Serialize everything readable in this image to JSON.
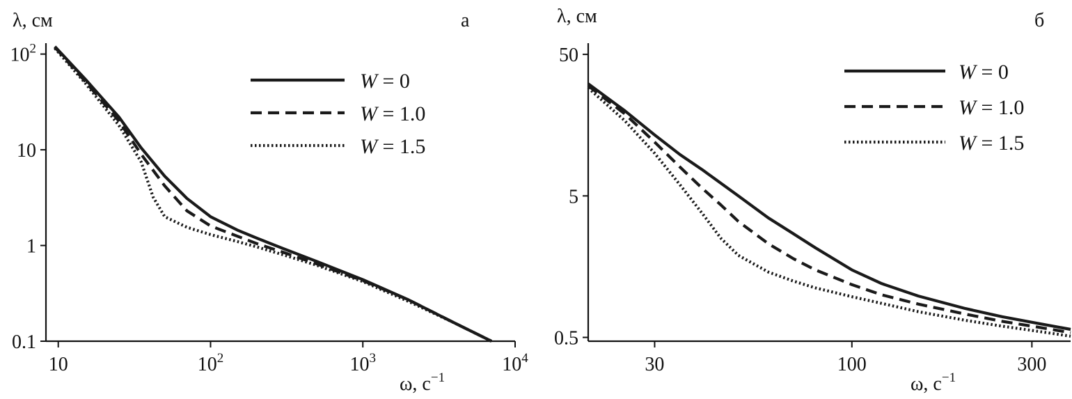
{
  "chart_data": [
    {
      "type": "line",
      "panel_label": "а",
      "ylabel": "λ, см",
      "xlabel": "ω, с",
      "xlabel_sup": "−1",
      "xscale": "log",
      "yscale": "log",
      "xlim": [
        8.3,
        10000
      ],
      "ylim": [
        0.1,
        130
      ],
      "xticks": [
        {
          "value": 10,
          "base": "10",
          "exp": ""
        },
        {
          "value": 100,
          "base": "10",
          "exp": "2"
        },
        {
          "value": 1000,
          "base": "10",
          "exp": "3"
        },
        {
          "value": 10000,
          "base": "10",
          "exp": "4"
        }
      ],
      "yticks": [
        {
          "value": 100,
          "base": "10",
          "exp": "2"
        },
        {
          "value": 10,
          "base": "10",
          "exp": ""
        },
        {
          "value": 1,
          "base": "1",
          "exp": ""
        },
        {
          "value": 0.1,
          "base": "0.1",
          "exp": ""
        }
      ],
      "legend_position": "top-right",
      "series": [
        {
          "name": "W",
          "value_label": "= 0",
          "style": "solid",
          "x": [
            9.5,
            15,
            25,
            35,
            50,
            70,
            100,
            150,
            200,
            300,
            500,
            1000,
            2000,
            4000,
            7000
          ],
          "y": [
            120,
            55,
            22,
            10.5,
            5.3,
            3.1,
            2.0,
            1.45,
            1.2,
            0.93,
            0.68,
            0.44,
            0.27,
            0.155,
            0.1
          ]
        },
        {
          "name": "W",
          "value_label": "= 1.0",
          "style": "dashed",
          "x": [
            9.5,
            15,
            25,
            35,
            50,
            70,
            100,
            150,
            200,
            300,
            500,
            1000,
            2000,
            4000,
            7000
          ],
          "y": [
            118,
            52,
            20,
            9.0,
            4.2,
            2.3,
            1.6,
            1.25,
            1.05,
            0.85,
            0.64,
            0.43,
            0.27,
            0.155,
            0.1
          ]
        },
        {
          "name": "W",
          "value_label": "= 1.5",
          "style": "dotted",
          "x": [
            9.5,
            15,
            25,
            35,
            42,
            50,
            70,
            100,
            150,
            200,
            300,
            500,
            1000,
            2000,
            4000,
            7000
          ],
          "y": [
            115,
            50,
            18,
            7.5,
            3.2,
            2.0,
            1.55,
            1.3,
            1.1,
            0.97,
            0.8,
            0.62,
            0.42,
            0.26,
            0.155,
            0.1
          ]
        }
      ]
    },
    {
      "type": "line",
      "panel_label": "б",
      "ylabel": "λ, см",
      "xlabel": "ω, с",
      "xlabel_sup": "−1",
      "xscale": "log",
      "yscale": "log",
      "xlim": [
        20,
        380
      ],
      "ylim": [
        0.47,
        60
      ],
      "xticks": [
        {
          "value": 30,
          "base": "30",
          "exp": ""
        },
        {
          "value": 100,
          "base": "100",
          "exp": ""
        },
        {
          "value": 300,
          "base": "300",
          "exp": ""
        }
      ],
      "yticks": [
        {
          "value": 50,
          "base": "50",
          "exp": ""
        },
        {
          "value": 5,
          "base": "5",
          "exp": ""
        },
        {
          "value": 0.5,
          "base": "0.5",
          "exp": ""
        }
      ],
      "legend_position": "top-right",
      "series": [
        {
          "name": "W",
          "value_label": "= 0",
          "style": "solid",
          "x": [
            20,
            25,
            30,
            35,
            40,
            50,
            60,
            70,
            80,
            100,
            120,
            150,
            200,
            250,
            300,
            380
          ],
          "y": [
            31,
            20,
            13.5,
            9.8,
            7.7,
            5.0,
            3.5,
            2.7,
            2.15,
            1.5,
            1.2,
            0.98,
            0.8,
            0.7,
            0.64,
            0.57
          ]
        },
        {
          "name": "W",
          "value_label": "= 1.0",
          "style": "dashed",
          "x": [
            20,
            25,
            30,
            35,
            40,
            45,
            50,
            60,
            70,
            80,
            100,
            120,
            150,
            200,
            250,
            300,
            380
          ],
          "y": [
            30,
            19,
            12,
            8.0,
            5.7,
            4.3,
            3.3,
            2.3,
            1.8,
            1.5,
            1.18,
            1.0,
            0.86,
            0.73,
            0.65,
            0.6,
            0.54
          ]
        },
        {
          "name": "W",
          "value_label": "= 1.5",
          "style": "dotted",
          "x": [
            20,
            25,
            30,
            35,
            40,
            45,
            50,
            60,
            70,
            80,
            100,
            120,
            150,
            200,
            250,
            300,
            380
          ],
          "y": [
            29,
            17,
            10,
            6.0,
            3.8,
            2.5,
            1.9,
            1.45,
            1.25,
            1.12,
            0.97,
            0.87,
            0.76,
            0.66,
            0.6,
            0.56,
            0.51
          ]
        }
      ]
    }
  ]
}
